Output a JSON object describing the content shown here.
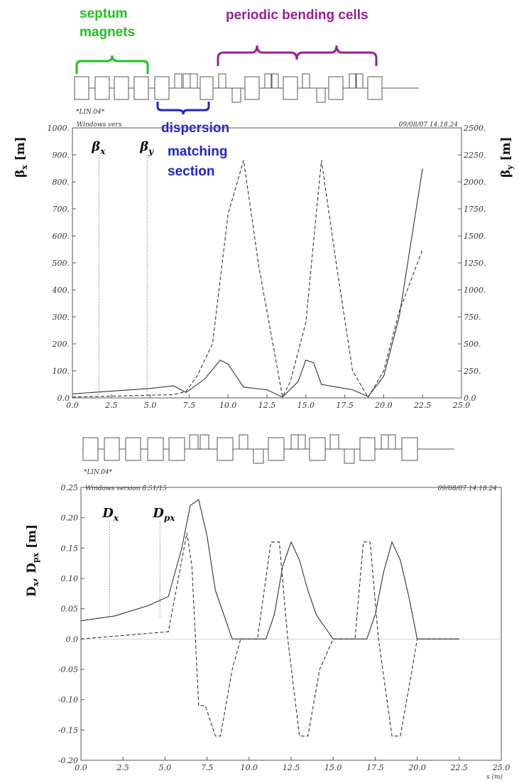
{
  "annotations": {
    "septum": "septum magnets",
    "periodic": "periodic bending cells",
    "dispersion": [
      "dispersion",
      "matching",
      "section"
    ]
  },
  "colors": {
    "septum": "#22c022",
    "periodic": "#9b1d9b",
    "dispersion": "#2222cc",
    "curve": "#333333"
  },
  "lattice_label": "*LIN.04*",
  "chart_data": [
    {
      "type": "line",
      "header_left": "Windows vers",
      "header_right": "09/08/07  14.18.24",
      "ylabel_left": "βx [m]",
      "ylabel_right": "βy [m]",
      "xlim": [
        0,
        25
      ],
      "ylim_left": [
        0,
        1000
      ],
      "ylim_right": [
        0,
        2500
      ],
      "x_ticks": [
        "0.0",
        "2.5",
        "5.0",
        "7.5",
        "10.0",
        "12.5",
        "15.0",
        "17.5",
        "20.0",
        "22.5",
        "25.0"
      ],
      "y_ticks_left": [
        "0.0",
        "100.",
        "200.",
        "300.",
        "400.",
        "500.",
        "600.",
        "700.",
        "800.",
        "900.",
        "1000."
      ],
      "y_ticks_right": [
        "0.0",
        "250.",
        "500.",
        "750.",
        "1000.",
        "1250.",
        "1500.",
        "1750.",
        "2000.",
        "2250.",
        "2500."
      ],
      "markers": [
        {
          "label": "βx",
          "x": 1.7
        },
        {
          "label": "βy",
          "x": 4.8
        }
      ],
      "series": [
        {
          "name": "βx",
          "axis": "left",
          "style": "solid",
          "x": [
            0,
            5,
            6.5,
            7.3,
            8.5,
            9.5,
            10,
            11,
            12.5,
            13.5,
            14.5,
            15,
            15.5,
            16,
            17,
            18,
            19,
            20,
            21,
            22.5
          ],
          "y": [
            15,
            35,
            45,
            20,
            70,
            140,
            125,
            40,
            30,
            3,
            60,
            140,
            130,
            50,
            40,
            30,
            5,
            80,
            300,
            850
          ]
        },
        {
          "name": "βy",
          "axis": "right",
          "style": "dashed",
          "x": [
            0,
            6.5,
            7.3,
            8,
            9,
            10,
            11,
            12,
            13.5,
            14,
            15,
            16,
            17,
            18,
            19,
            20,
            21,
            22.5
          ],
          "y": [
            8,
            30,
            60,
            200,
            500,
            1700,
            2200,
            1200,
            10,
            150,
            700,
            2200,
            1200,
            250,
            5,
            250,
            800,
            1375
          ]
        }
      ]
    },
    {
      "type": "line",
      "header_left": "Windows version 8.51/15",
      "header_right": "09/08/07  14.18.24",
      "ylabel_left": "Dx, Dpx [m]",
      "xlabel": "s (m)",
      "xlim": [
        0,
        25
      ],
      "ylim": [
        -0.2,
        0.25
      ],
      "x_ticks": [
        "0.0",
        "2.5",
        "5.0",
        "7.5",
        "10.0",
        "12.5",
        "15.0",
        "17.5",
        "20.0",
        "22.5",
        "25.0"
      ],
      "y_ticks": [
        "-0.20",
        "-0.15",
        "-0.10",
        "-0.05",
        "0.0",
        "0.05",
        "0.10",
        "0.15",
        "0.20",
        "0.25"
      ],
      "markers": [
        {
          "label": "Dx",
          "x": 1.7
        },
        {
          "label": "Dpx",
          "x": 4.7
        }
      ],
      "series": [
        {
          "name": "Dx",
          "style": "solid",
          "x": [
            0,
            2,
            4,
            5.2,
            6,
            6.5,
            7,
            7.5,
            8,
            9,
            11,
            11.5,
            12,
            12.5,
            13,
            13.5,
            14,
            15,
            17,
            17.5,
            18,
            18.5,
            19,
            19.5,
            20,
            22.5
          ],
          "y": [
            0.03,
            0.038,
            0.055,
            0.07,
            0.15,
            0.22,
            0.23,
            0.17,
            0.08,
            0.0,
            0.0,
            0.04,
            0.12,
            0.16,
            0.13,
            0.08,
            0.04,
            0.0,
            0.0,
            0.04,
            0.11,
            0.16,
            0.13,
            0.07,
            0.0,
            0.0
          ]
        },
        {
          "name": "Dpx",
          "style": "dashed",
          "x": [
            0,
            5.2,
            6.3,
            6.6,
            7,
            7.4,
            8,
            8.3,
            9,
            9.5,
            10.5,
            11.3,
            11.8,
            12.3,
            13,
            13.5,
            14.2,
            15,
            16.3,
            16.8,
            17.2,
            17.7,
            18.5,
            19,
            19.7,
            20,
            22.5
          ],
          "y": [
            0.0,
            0.012,
            0.175,
            0.12,
            -0.11,
            -0.11,
            -0.16,
            -0.16,
            -0.05,
            0.0,
            0.0,
            0.16,
            0.16,
            0.0,
            -0.16,
            -0.16,
            -0.05,
            0.0,
            0.0,
            0.16,
            0.16,
            0.0,
            -0.16,
            -0.16,
            -0.05,
            0.0,
            0.0
          ]
        }
      ]
    }
  ]
}
